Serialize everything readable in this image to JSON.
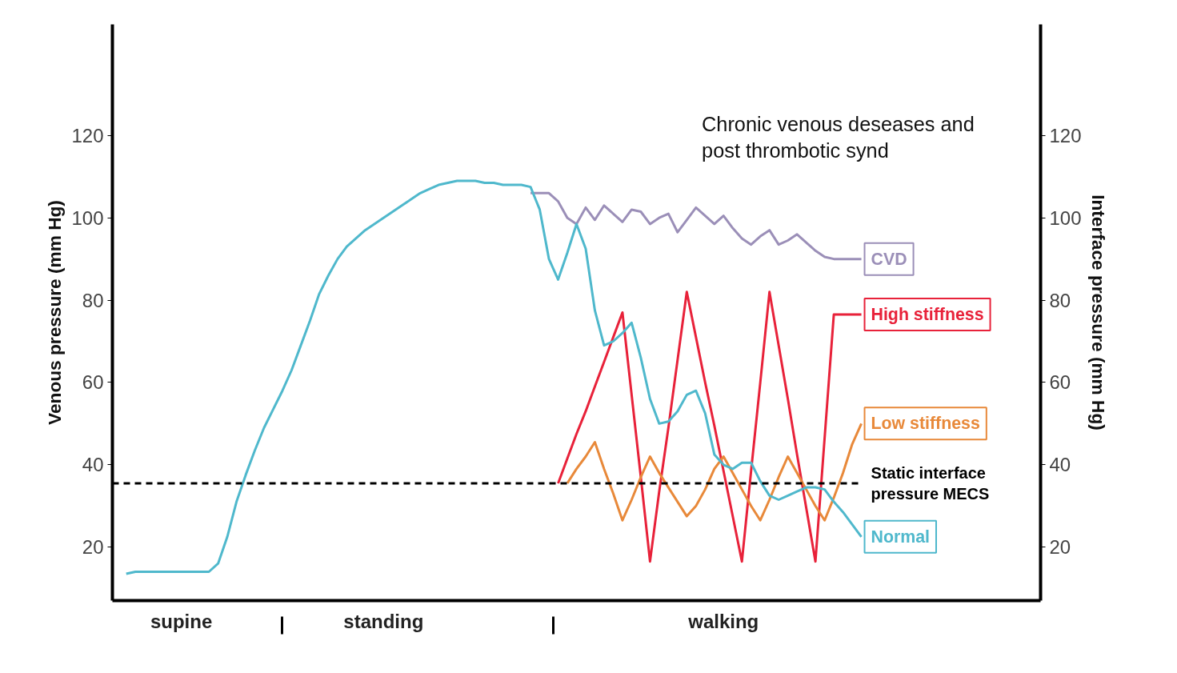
{
  "chart_data": {
    "type": "line",
    "ylabel": "Venous pressure (mm Hg)",
    "y2label": "Interface pressure (mm Hg)",
    "categories": [
      null,
      null,
      null,
      null,
      null,
      null,
      null,
      "supine",
      null,
      null,
      null,
      null,
      null,
      null,
      null,
      null,
      null,
      null,
      null,
      null,
      null,
      null,
      null,
      null,
      null,
      null,
      null,
      null,
      null,
      "standing",
      null,
      null,
      null,
      null,
      null,
      null,
      null,
      null,
      null,
      null,
      null,
      null,
      null,
      null,
      null,
      null,
      null,
      null,
      null,
      null,
      null,
      null,
      null,
      null,
      null,
      null,
      null,
      null,
      null,
      null,
      null,
      null,
      null,
      null,
      null,
      null,
      "walking",
      null,
      null,
      null,
      null,
      null,
      null,
      null,
      null,
      null,
      null,
      null,
      null,
      null,
      null,
      null,
      null,
      null,
      null,
      null,
      null,
      null,
      null,
      null,
      null,
      null,
      null,
      null,
      null,
      null,
      null,
      null,
      null,
      null,
      null
    ],
    "ylim": [
      7,
      147
    ],
    "yticks": [
      20,
      40,
      60,
      80,
      100,
      120
    ],
    "y2lim": [
      7,
      147
    ],
    "y2ticks": [
      20,
      40,
      60,
      80,
      100,
      120
    ],
    "grid": false,
    "legend": false,
    "marker": "none",
    "line_style": "solid",
    "series": [
      {
        "name": "CVD",
        "color": "#9b8fb8",
        "values": [
          null,
          null,
          null,
          null,
          null,
          null,
          null,
          null,
          null,
          null,
          null,
          null,
          null,
          null,
          null,
          null,
          null,
          null,
          null,
          null,
          null,
          null,
          null,
          null,
          null,
          null,
          null,
          null,
          null,
          null,
          null,
          null,
          null,
          null,
          null,
          null,
          null,
          null,
          null,
          null,
          null,
          null,
          null,
          null,
          null,
          106,
          106,
          106,
          104,
          100,
          98.5,
          102.5,
          99.5,
          103,
          101,
          99,
          102,
          101.5,
          98.5,
          100,
          101,
          96.5,
          99.5,
          102.5,
          100.5,
          98.5,
          100.5,
          97.5,
          95,
          93.5,
          95.5,
          97,
          93.5,
          94.5,
          96,
          94,
          92,
          90.5,
          90,
          90,
          90,
          90,
          null,
          null,
          null,
          null,
          null,
          null,
          null,
          null,
          null,
          null,
          null,
          null,
          null,
          null,
          null,
          null,
          null,
          null,
          null
        ]
      },
      {
        "name": "High stiffness",
        "color": "#e8223a",
        "values": [
          null,
          null,
          null,
          null,
          null,
          null,
          null,
          null,
          null,
          null,
          null,
          null,
          null,
          null,
          null,
          null,
          null,
          null,
          null,
          null,
          null,
          null,
          null,
          null,
          null,
          null,
          null,
          null,
          null,
          null,
          null,
          null,
          null,
          null,
          null,
          null,
          null,
          null,
          null,
          null,
          null,
          null,
          null,
          null,
          null,
          null,
          null,
          null,
          35.5,
          41.5,
          47.5,
          53,
          59,
          65,
          71,
          77,
          57,
          37,
          16.5,
          33.5,
          49,
          65.5,
          82,
          71,
          60,
          49.5,
          38.5,
          27.5,
          16.5,
          38.5,
          60,
          82,
          69,
          56,
          42.5,
          29.5,
          16.5,
          46.5,
          76.5,
          76.5,
          76.5,
          76.5,
          null,
          null,
          null,
          null,
          null,
          null,
          null,
          null,
          null,
          null,
          null,
          null,
          null,
          null,
          null,
          null,
          null,
          null,
          null
        ]
      },
      {
        "name": "Low stiffness",
        "color": "#e8893a",
        "values": [
          null,
          null,
          null,
          null,
          null,
          null,
          null,
          null,
          null,
          null,
          null,
          null,
          null,
          null,
          null,
          null,
          null,
          null,
          null,
          null,
          null,
          null,
          null,
          null,
          null,
          null,
          null,
          null,
          null,
          null,
          null,
          null,
          null,
          null,
          null,
          null,
          null,
          null,
          null,
          null,
          null,
          null,
          null,
          null,
          null,
          null,
          null,
          null,
          null,
          35.5,
          39,
          42,
          45.5,
          39,
          33,
          26.5,
          31.5,
          37,
          42,
          38,
          34.5,
          31,
          27.5,
          30,
          34,
          39,
          42,
          38,
          34,
          30,
          26.5,
          31.5,
          37,
          42,
          38,
          34,
          30,
          26.5,
          32,
          38,
          45,
          50,
          null,
          null,
          null,
          null,
          null,
          null,
          null,
          null,
          null,
          null,
          null,
          null,
          null,
          null,
          null,
          null,
          null,
          null,
          null
        ]
      },
      {
        "name": "Normal",
        "color": "#4fb8cc",
        "values": [
          null,
          13.5,
          14,
          14,
          14,
          14,
          14,
          14,
          14,
          14,
          14,
          16,
          22.5,
          31,
          37.5,
          43.5,
          49,
          53.5,
          58,
          63,
          69,
          75,
          81.5,
          86,
          90,
          93,
          95,
          97,
          98.5,
          100,
          101.5,
          103,
          104.5,
          106,
          107,
          108,
          108.5,
          109,
          109,
          109,
          108.5,
          108.5,
          108,
          108,
          108,
          107.5,
          102,
          90,
          85,
          91.5,
          98.5,
          92.5,
          77.5,
          69,
          70,
          72,
          74.5,
          66,
          56,
          50,
          50.5,
          53,
          57,
          58,
          52.5,
          42.5,
          40,
          39,
          40.5,
          40.5,
          36,
          32.5,
          31.5,
          32.5,
          33.5,
          34.5,
          34.5,
          34,
          31,
          28.5,
          25.5,
          22.5,
          null,
          null,
          null,
          null,
          null,
          null,
          null,
          null,
          null,
          null,
          null,
          null,
          null,
          null,
          null,
          null,
          null,
          null,
          null
        ]
      }
    ],
    "ref_lines": [
      {
        "axis": "y",
        "value": 35.5,
        "label": "Static interface pressure MECS",
        "color": "#000000",
        "line_style": "dashed"
      }
    ],
    "annotations": [
      "Chronic venous deseases and post thrombotic synd"
    ]
  }
}
